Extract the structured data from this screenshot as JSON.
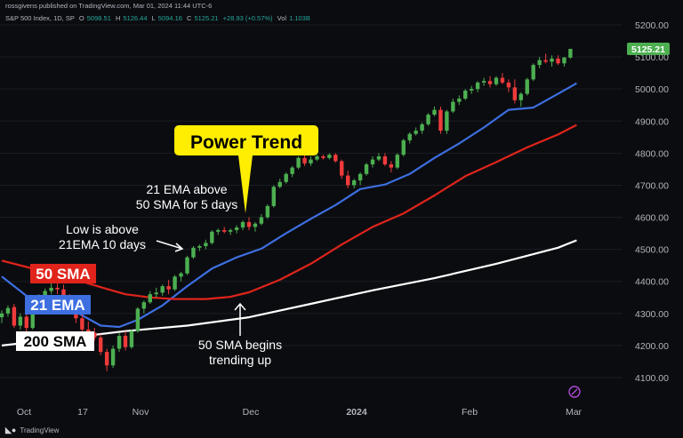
{
  "header": {
    "publisher": "rossgivens published on TradingView.com, Mar 01, 2024 11:44 UTC-6",
    "symbol": "S&P 500 Index, 1D, SP",
    "open_label": "O",
    "open": "5098.51",
    "high_label": "H",
    "high": "5126.44",
    "low_label": "L",
    "low": "5094.16",
    "close_label": "C",
    "close": "5125.21",
    "change": "+28.93 (+0.57%)",
    "vol_label": "Vol",
    "vol": "1.103B"
  },
  "footer": {
    "brand": "TradingView"
  },
  "colors": {
    "background": "#0b0c10",
    "up": "#4caf50",
    "down": "#ef3b3b",
    "ema21": "#3d6fe0",
    "sma50": "#e0241b",
    "sma200": "#ffffff",
    "callout": "#ffee00",
    "price_tag": "#4caf50"
  },
  "chart_data": {
    "type": "candlestick",
    "y_axis": {
      "min": 4050,
      "max": 5250,
      "ticks": [
        4100,
        4200,
        4300,
        4400,
        4500,
        4600,
        4700,
        4800,
        4900,
        5000,
        5100,
        5200
      ]
    },
    "x_axis": {
      "ticks": [
        "Oct",
        "17",
        "Nov",
        "Dec",
        "2024",
        "Feb",
        "Mar"
      ],
      "bold_ticks": [
        "2024"
      ]
    },
    "last_price": "5125.21",
    "candles": [
      [
        4288,
        4310,
        4270,
        4300
      ],
      [
        4300,
        4325,
        4290,
        4317
      ],
      [
        4320,
        4330,
        4255,
        4262
      ],
      [
        4262,
        4300,
        4250,
        4290
      ],
      [
        4290,
        4310,
        4240,
        4255
      ],
      [
        4255,
        4320,
        4250,
        4315
      ],
      [
        4315,
        4360,
        4305,
        4355
      ],
      [
        4355,
        4378,
        4340,
        4370
      ],
      [
        4370,
        4395,
        4360,
        4380
      ],
      [
        4380,
        4395,
        4360,
        4375
      ],
      [
        4375,
        4390,
        4340,
        4350
      ],
      [
        4350,
        4360,
        4300,
        4310
      ],
      [
        4310,
        4330,
        4270,
        4285
      ],
      [
        4285,
        4300,
        4240,
        4250
      ],
      [
        4250,
        4275,
        4220,
        4240
      ],
      [
        4240,
        4255,
        4215,
        4225
      ],
      [
        4225,
        4235,
        4170,
        4180
      ],
      [
        4180,
        4190,
        4120,
        4138
      ],
      [
        4138,
        4200,
        4130,
        4190
      ],
      [
        4190,
        4240,
        4180,
        4230
      ],
      [
        4230,
        4245,
        4185,
        4195
      ],
      [
        4195,
        4250,
        4190,
        4245
      ],
      [
        4245,
        4320,
        4240,
        4315
      ],
      [
        4315,
        4340,
        4300,
        4335
      ],
      [
        4335,
        4370,
        4330,
        4360
      ],
      [
        4360,
        4380,
        4350,
        4365
      ],
      [
        4365,
        4390,
        4355,
        4385
      ],
      [
        4385,
        4405,
        4360,
        4375
      ],
      [
        4375,
        4420,
        4370,
        4415
      ],
      [
        4415,
        4430,
        4400,
        4425
      ],
      [
        4425,
        4480,
        4420,
        4475
      ],
      [
        4475,
        4510,
        4470,
        4505
      ],
      [
        4505,
        4515,
        4495,
        4510
      ],
      [
        4510,
        4530,
        4500,
        4520
      ],
      [
        4520,
        4560,
        4515,
        4555
      ],
      [
        4555,
        4565,
        4545,
        4560
      ],
      [
        4560,
        4570,
        4550,
        4555
      ],
      [
        4555,
        4565,
        4545,
        4560
      ],
      [
        4560,
        4575,
        4550,
        4568
      ],
      [
        4568,
        4590,
        4560,
        4585
      ],
      [
        4585,
        4600,
        4560,
        4570
      ],
      [
        4570,
        4585,
        4555,
        4580
      ],
      [
        4580,
        4610,
        4575,
        4600
      ],
      [
        4600,
        4640,
        4595,
        4635
      ],
      [
        4635,
        4700,
        4630,
        4695
      ],
      [
        4695,
        4720,
        4690,
        4710
      ],
      [
        4710,
        4740,
        4705,
        4735
      ],
      [
        4735,
        4760,
        4725,
        4755
      ],
      [
        4755,
        4790,
        4750,
        4785
      ],
      [
        4785,
        4795,
        4760,
        4768
      ],
      [
        4768,
        4790,
        4760,
        4780
      ],
      [
        4780,
        4795,
        4775,
        4790
      ],
      [
        4790,
        4795,
        4780,
        4785
      ],
      [
        4785,
        4800,
        4780,
        4795
      ],
      [
        4795,
        4800,
        4770,
        4775
      ],
      [
        4775,
        4780,
        4720,
        4730
      ],
      [
        4730,
        4745,
        4690,
        4700
      ],
      [
        4700,
        4720,
        4690,
        4715
      ],
      [
        4715,
        4740,
        4700,
        4735
      ],
      [
        4735,
        4770,
        4730,
        4765
      ],
      [
        4765,
        4790,
        4755,
        4780
      ],
      [
        4780,
        4800,
        4775,
        4790
      ],
      [
        4790,
        4800,
        4760,
        4765
      ],
      [
        4765,
        4775,
        4740,
        4755
      ],
      [
        4755,
        4800,
        4750,
        4795
      ],
      [
        4795,
        4845,
        4790,
        4840
      ],
      [
        4840,
        4865,
        4830,
        4860
      ],
      [
        4860,
        4880,
        4855,
        4870
      ],
      [
        4870,
        4895,
        4860,
        4890
      ],
      [
        4890,
        4925,
        4885,
        4920
      ],
      [
        4920,
        4945,
        4915,
        4935
      ],
      [
        4935,
        4945,
        4860,
        4870
      ],
      [
        4870,
        4935,
        4860,
        4930
      ],
      [
        4930,
        4970,
        4925,
        4960
      ],
      [
        4960,
        4980,
        4950,
        4970
      ],
      [
        4970,
        5000,
        4965,
        4995
      ],
      [
        4995,
        5010,
        4985,
        5000
      ],
      [
        5000,
        5025,
        4990,
        5020
      ],
      [
        5020,
        5035,
        5010,
        5025
      ],
      [
        5025,
        5040,
        5005,
        5015
      ],
      [
        5015,
        5040,
        5010,
        5035
      ],
      [
        5035,
        5050,
        5015,
        5020
      ],
      [
        5020,
        5030,
        4990,
        5005
      ],
      [
        5005,
        5030,
        4955,
        4965
      ],
      [
        4965,
        4990,
        4945,
        4985
      ],
      [
        4985,
        5035,
        4980,
        5030
      ],
      [
        5030,
        5080,
        5025,
        5075
      ],
      [
        5075,
        5100,
        5065,
        5090
      ],
      [
        5090,
        5110,
        5080,
        5085
      ],
      [
        5085,
        5105,
        5070,
        5095
      ],
      [
        5095,
        5105,
        5075,
        5080
      ],
      [
        5080,
        5100,
        5070,
        5098
      ],
      [
        5098,
        5126,
        5094,
        5125
      ]
    ],
    "lines": [
      {
        "name": "21 EMA",
        "color": "#3d6fe0",
        "values": [
          [
            0,
            4415
          ],
          [
            4,
            4355
          ],
          [
            8,
            4340
          ],
          [
            12,
            4305
          ],
          [
            16,
            4262
          ],
          [
            19,
            4258
          ],
          [
            22,
            4280
          ],
          [
            26,
            4325
          ],
          [
            30,
            4385
          ],
          [
            34,
            4440
          ],
          [
            38,
            4475
          ],
          [
            42,
            4502
          ],
          [
            46,
            4550
          ],
          [
            50,
            4595
          ],
          [
            54,
            4638
          ],
          [
            58,
            4688
          ],
          [
            62,
            4702
          ],
          [
            66,
            4735
          ],
          [
            70,
            4785
          ],
          [
            74,
            4830
          ],
          [
            78,
            4880
          ],
          [
            82,
            4935
          ],
          [
            86,
            4942
          ],
          [
            90,
            4985
          ],
          [
            93,
            5018
          ]
        ]
      },
      {
        "name": "50 SMA",
        "color": "#e0241b",
        "values": [
          [
            0,
            4465
          ],
          [
            4,
            4445
          ],
          [
            8,
            4425
          ],
          [
            12,
            4405
          ],
          [
            16,
            4382
          ],
          [
            20,
            4360
          ],
          [
            24,
            4350
          ],
          [
            28,
            4345
          ],
          [
            33,
            4345
          ],
          [
            37,
            4352
          ],
          [
            40,
            4366
          ],
          [
            45,
            4405
          ],
          [
            50,
            4455
          ],
          [
            55,
            4515
          ],
          [
            60,
            4570
          ],
          [
            65,
            4612
          ],
          [
            70,
            4668
          ],
          [
            75,
            4728
          ],
          [
            80,
            4772
          ],
          [
            85,
            4818
          ],
          [
            90,
            4858
          ],
          [
            93,
            4888
          ]
        ]
      },
      {
        "name": "200 SMA",
        "color": "#ffffff",
        "values": [
          [
            0,
            4200
          ],
          [
            10,
            4222
          ],
          [
            20,
            4245
          ],
          [
            30,
            4262
          ],
          [
            40,
            4288
          ],
          [
            50,
            4330
          ],
          [
            60,
            4372
          ],
          [
            70,
            4410
          ],
          [
            80,
            4455
          ],
          [
            90,
            4505
          ],
          [
            93,
            4528
          ]
        ]
      }
    ],
    "series_labels": [
      "50 SMA",
      "21 EMA",
      "200 SMA"
    ],
    "annotations": {
      "callout": "Power Trend",
      "text1": [
        "21 EMA above",
        "50 SMA for 5 days"
      ],
      "text2": [
        "Low is above",
        "21EMA 10 days"
      ],
      "text3": [
        "50 SMA begins",
        "trending up"
      ]
    }
  }
}
